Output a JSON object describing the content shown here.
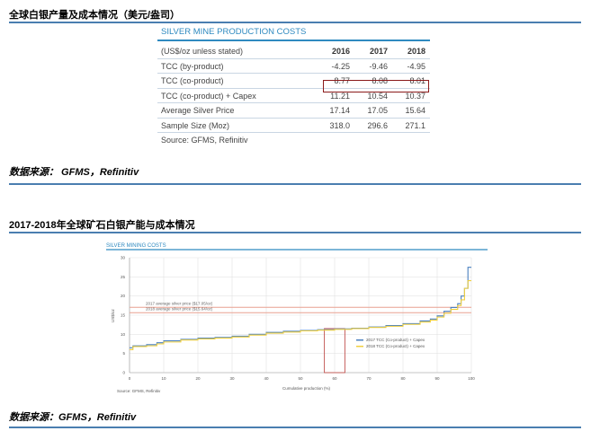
{
  "section1": {
    "title": "全球白银产量及成本情况（美元/盎司）"
  },
  "table": {
    "title": "SILVER MINE PRODUCTION COSTS",
    "header": [
      "(US$/oz unless stated)",
      "2016",
      "2017",
      "2018"
    ],
    "rows": [
      [
        "TCC (by-product)",
        "-4.25",
        "-9.46",
        "-4.95"
      ],
      [
        "TCC (co-product)",
        "8.77",
        "8.08",
        "8.01"
      ],
      [
        "TCC (co-product) + Capex",
        "11.21",
        "10.54",
        "10.37"
      ],
      [
        "Average Silver Price",
        "17.14",
        "17.05",
        "15.64"
      ],
      [
        "Sample Size (Moz)",
        "318.0",
        "296.6",
        "271.1"
      ]
    ],
    "source": "Source: GFMS, Refinitiv",
    "highlight_color": "#8b1a1a"
  },
  "source_note_1": "数据来源： GFMS，Refinitiv",
  "section2": {
    "title": "2017-2018年全球矿石白银产能与成本情况"
  },
  "source_note_2": "数据来源：GFMS，Refinitiv",
  "chart_data": {
    "type": "line",
    "title": "SILVER MINING COSTS",
    "xlabel": "Cumulative production (%)",
    "ylabel": "US$/oz",
    "xlim": [
      0,
      100
    ],
    "ylim": [
      0,
      30
    ],
    "xticks": [
      "0",
      "10",
      "20",
      "30",
      "40",
      "50",
      "60",
      "70",
      "80",
      "90",
      "100"
    ],
    "yticks": [
      "0",
      "5",
      "10",
      "15",
      "20",
      "25",
      "30"
    ],
    "grid": true,
    "legend_position": "right",
    "source": "Source: GFMS, Refinitiv",
    "annotations": [
      {
        "text": "2017 average silver price ($17.05/oz)",
        "y": 17.05,
        "color": "#e8a090"
      },
      {
        "text": "2018 average silver price ($15.64/oz)",
        "y": 15.64,
        "color": "#e8a090"
      }
    ],
    "highlight_region": {
      "x": [
        57,
        63
      ],
      "y": [
        0,
        11.5
      ],
      "color": "#c0504d"
    },
    "series": [
      {
        "name": "2017 TCC (Co-product) + Capex",
        "color": "#4a80c0",
        "x": [
          0,
          1,
          5,
          8,
          10,
          15,
          20,
          25,
          30,
          35,
          40,
          45,
          50,
          55,
          60,
          65,
          70,
          75,
          80,
          85,
          88,
          90,
          92,
          94,
          96,
          97,
          98,
          99,
          100
        ],
        "y": [
          6.5,
          7.0,
          7.3,
          7.8,
          8.3,
          8.7,
          9.0,
          9.2,
          9.5,
          10.0,
          10.5,
          10.8,
          11.0,
          11.2,
          11.4,
          11.6,
          11.9,
          12.3,
          12.8,
          13.5,
          14.0,
          14.8,
          16.0,
          17.0,
          18.0,
          20.0,
          22.0,
          27.5,
          27.5
        ]
      },
      {
        "name": "2018 TCC (Co-product) + Capex",
        "color": "#f0d040",
        "x": [
          0,
          1,
          5,
          8,
          10,
          15,
          20,
          25,
          30,
          35,
          40,
          45,
          50,
          55,
          60,
          65,
          70,
          75,
          80,
          85,
          88,
          90,
          92,
          94,
          96,
          97,
          98,
          99,
          100
        ],
        "y": [
          6.0,
          6.8,
          7.0,
          7.5,
          8.0,
          8.5,
          8.8,
          9.0,
          9.3,
          9.8,
          10.3,
          10.6,
          10.9,
          11.1,
          11.3,
          11.5,
          11.8,
          12.1,
          12.6,
          13.2,
          13.7,
          14.5,
          15.5,
          16.5,
          17.5,
          19.0,
          22.0,
          24.0,
          24.0
        ]
      }
    ]
  }
}
